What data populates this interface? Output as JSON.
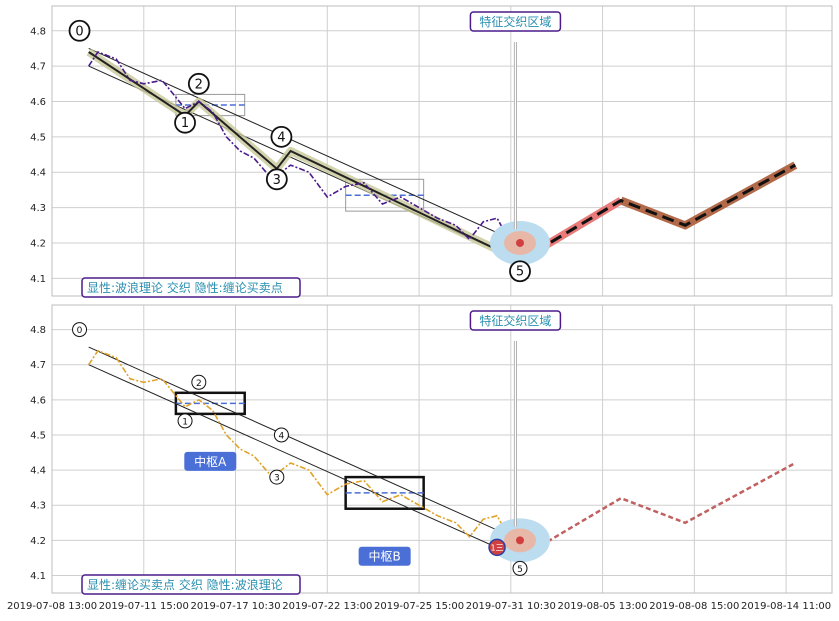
{
  "chart_data": [
    {
      "type": "line",
      "ylim": [
        4.05,
        4.87
      ],
      "yticks": [
        4.1,
        4.2,
        4.3,
        4.4,
        4.5,
        4.6,
        4.7,
        4.8
      ],
      "caption": "显性:波浪理论 交织 隐性:缠论买卖点",
      "callout": "特征交织区域",
      "wave_labels": [
        {
          "text": "0",
          "x": 0.3,
          "y": 4.8
        },
        {
          "text": "1",
          "x": 1.45,
          "y": 4.54
        },
        {
          "text": "2",
          "x": 1.6,
          "y": 4.65
        },
        {
          "text": "3",
          "x": 2.45,
          "y": 4.38
        },
        {
          "text": "4",
          "x": 2.5,
          "y": 4.5
        },
        {
          "text": "5",
          "x": 5.1,
          "y": 4.12
        }
      ],
      "price_line": {
        "x": [
          0.4,
          0.5,
          0.7,
          0.85,
          1.0,
          1.2,
          1.45,
          1.6,
          1.75,
          1.9,
          2.05,
          2.2,
          2.4,
          2.6,
          2.8,
          3.0,
          3.2,
          3.4,
          3.6,
          3.8,
          4.0,
          4.2,
          4.4,
          4.55,
          4.7,
          4.85,
          5.0,
          5.1
        ],
        "y": [
          4.7,
          4.74,
          4.72,
          4.66,
          4.65,
          4.66,
          4.58,
          4.6,
          4.57,
          4.5,
          4.46,
          4.44,
          4.38,
          4.42,
          4.4,
          4.33,
          4.36,
          4.37,
          4.31,
          4.33,
          4.3,
          4.27,
          4.25,
          4.21,
          4.26,
          4.27,
          4.2,
          4.17
        ]
      },
      "wave_path": {
        "x": [
          0.4,
          1.45,
          1.6,
          2.45,
          2.6,
          5.1
        ],
        "y": [
          4.74,
          4.56,
          4.6,
          4.41,
          4.46,
          4.15
        ]
      },
      "channel_upper": {
        "x": [
          0.4,
          5.1
        ],
        "y": [
          4.75,
          4.2
        ]
      },
      "channel_lower": {
        "x": [
          0.4,
          5.1
        ],
        "y": [
          4.7,
          4.15
        ]
      },
      "projection": {
        "x": [
          5.1,
          6.2,
          6.9,
          8.1
        ],
        "y": [
          4.15,
          4.32,
          4.25,
          4.42
        ]
      },
      "zones": [
        {
          "x0": 1.35,
          "x1": 2.1,
          "y0": 4.56,
          "y1": 4.62
        },
        {
          "x0": 3.2,
          "x1": 4.05,
          "y0": 4.29,
          "y1": 4.38
        }
      ]
    },
    {
      "type": "line",
      "ylim": [
        4.05,
        4.87
      ],
      "yticks": [
        4.1,
        4.2,
        4.3,
        4.4,
        4.5,
        4.6,
        4.7,
        4.8
      ],
      "caption": "显性:缠论买卖点 交织 隐性:波浪理论",
      "callout": "特征交织区域",
      "zone_labels": [
        "中枢A",
        "中枢B"
      ],
      "buy_marker": "1三",
      "wave_labels": [
        {
          "text": "0",
          "x": 0.3,
          "y": 4.8
        },
        {
          "text": "1",
          "x": 1.45,
          "y": 4.54
        },
        {
          "text": "2",
          "x": 1.6,
          "y": 4.65
        },
        {
          "text": "3",
          "x": 2.45,
          "y": 4.38
        },
        {
          "text": "4",
          "x": 2.5,
          "y": 4.5
        },
        {
          "text": "5",
          "x": 5.1,
          "y": 4.12
        }
      ],
      "price_line": {
        "x": [
          0.4,
          0.5,
          0.7,
          0.85,
          1.0,
          1.2,
          1.45,
          1.6,
          1.75,
          1.9,
          2.05,
          2.2,
          2.4,
          2.6,
          2.8,
          3.0,
          3.2,
          3.4,
          3.6,
          3.8,
          4.0,
          4.2,
          4.4,
          4.55,
          4.7,
          4.85,
          5.0,
          5.1
        ],
        "y": [
          4.7,
          4.74,
          4.72,
          4.66,
          4.65,
          4.66,
          4.58,
          4.6,
          4.57,
          4.5,
          4.46,
          4.44,
          4.38,
          4.42,
          4.4,
          4.33,
          4.36,
          4.37,
          4.31,
          4.33,
          4.3,
          4.27,
          4.25,
          4.21,
          4.26,
          4.27,
          4.2,
          4.17
        ]
      },
      "channel_upper": {
        "x": [
          0.4,
          5.1
        ],
        "y": [
          4.75,
          4.2
        ]
      },
      "channel_lower": {
        "x": [
          0.4,
          5.1
        ],
        "y": [
          4.7,
          4.15
        ]
      },
      "projection": {
        "x": [
          5.1,
          6.2,
          6.9,
          8.1
        ],
        "y": [
          4.15,
          4.32,
          4.25,
          4.42
        ]
      },
      "zones": [
        {
          "x0": 1.35,
          "x1": 2.1,
          "y0": 4.56,
          "y1": 4.62
        },
        {
          "x0": 3.2,
          "x1": 4.05,
          "y0": 4.29,
          "y1": 4.38
        }
      ]
    }
  ],
  "x_tick_labels": [
    "2019-07-08 13:00",
    "2019-07-11 15:00",
    "2019-07-17 10:30",
    "2019-07-22 13:00",
    "2019-07-25 15:00",
    "2019-07-31 10:30",
    "2019-08-05 13:00",
    "2019-08-08 15:00",
    "2019-08-14 11:00"
  ],
  "x_ticks": [
    0,
    1,
    2,
    3,
    4,
    5,
    6,
    7,
    8
  ],
  "xlim": [
    0,
    8.5
  ],
  "colors": {
    "top_price": "#4b1b8c",
    "bottom_price": "#e0a32a",
    "caption_border": "#4b1b8c",
    "caption_text": "#2a8fb0",
    "zone_label_bg": "#4a6fd6",
    "projection_red": "#e87a7a",
    "projection_brown": "#b36a4a"
  }
}
